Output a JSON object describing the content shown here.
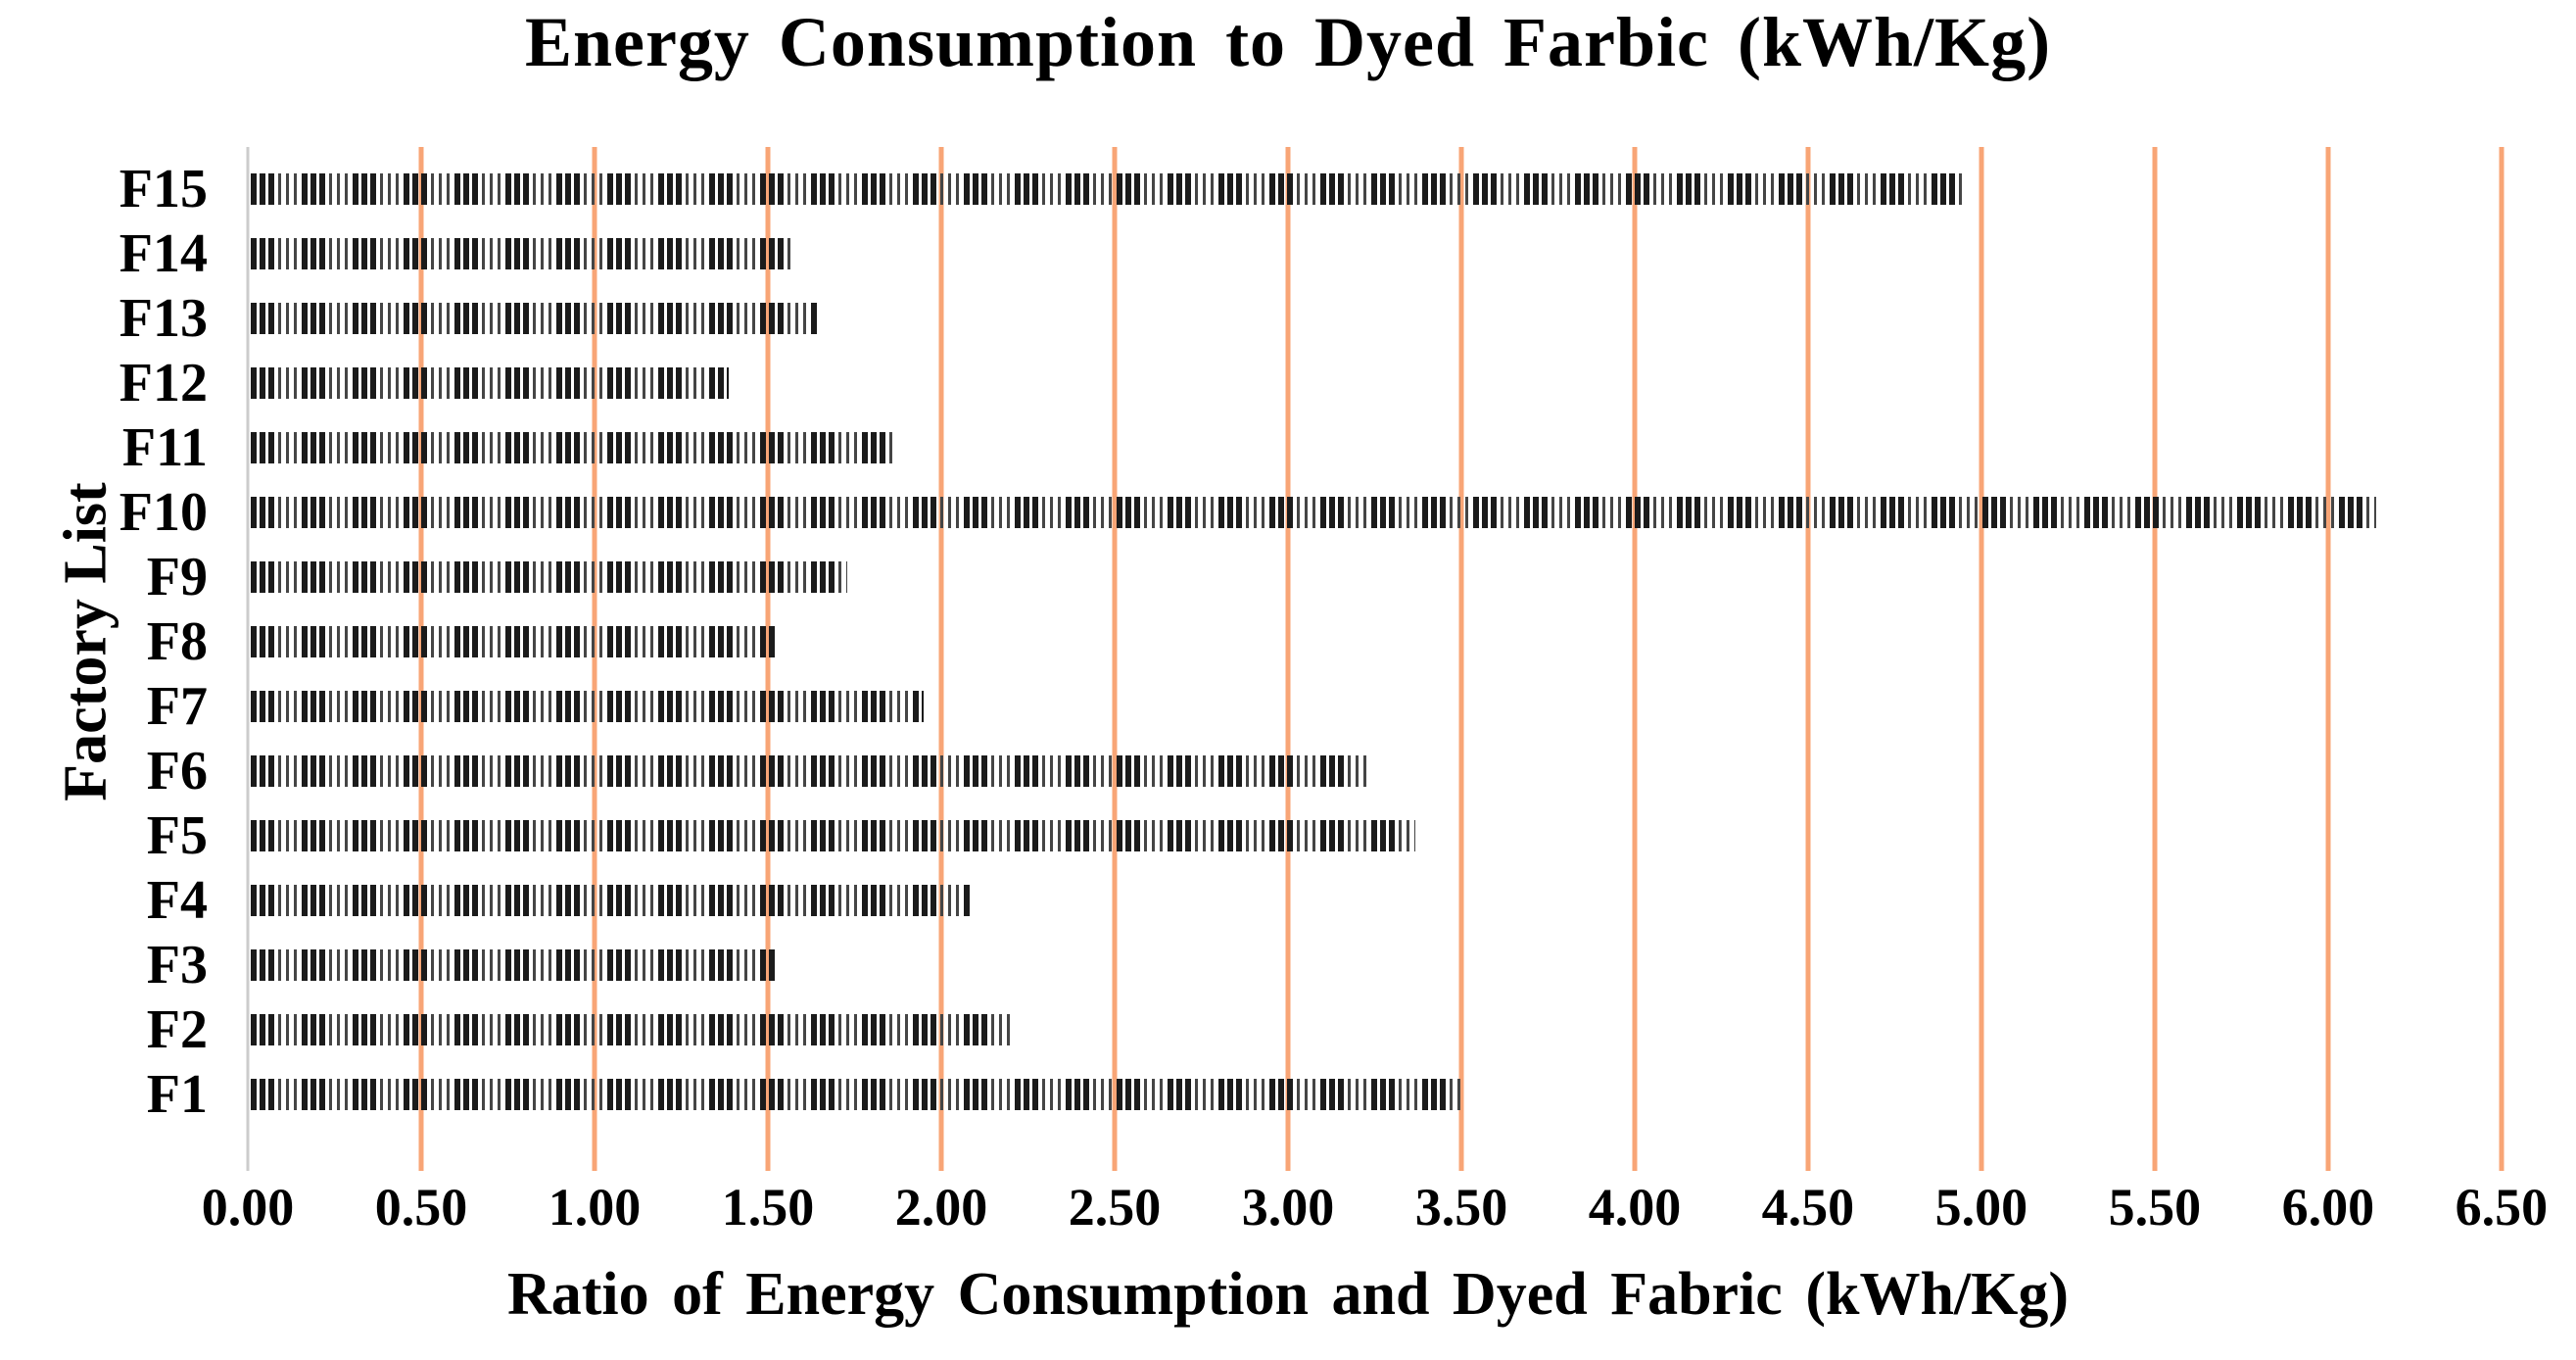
{
  "chart": {
    "title": "Energy Consumption to Dyed Farbic (kWh/Kg)",
    "xlabel": "Ratio of Energy Consumption and Dyed Fabric (kWh/Kg)",
    "ylabel": "Factory List"
  },
  "chart_data": {
    "type": "bar",
    "orientation": "horizontal",
    "title": "Energy Consumption to Dyed Farbic (kWh/Kg)",
    "xlabel": "Ratio of Energy Consumption and Dyed Fabric (kWh/Kg)",
    "ylabel": "Factory List",
    "categories_top_to_bottom": [
      "F15",
      "F14",
      "F13",
      "F12",
      "F11",
      "F10",
      "F9",
      "F8",
      "F7",
      "F6",
      "F5",
      "F4",
      "F3",
      "F2",
      "F1"
    ],
    "values_top_to_bottom": [
      4.94,
      1.56,
      1.64,
      1.38,
      1.85,
      6.13,
      1.72,
      1.51,
      1.94,
      3.23,
      3.36,
      2.08,
      1.51,
      2.19,
      3.49
    ],
    "xlim": [
      0,
      6.5
    ],
    "xtick_step": 0.5,
    "xtick_values": [
      0,
      0.5,
      1.0,
      1.5,
      2.0,
      2.5,
      3.0,
      3.5,
      4.0,
      4.5,
      5.0,
      5.5,
      6.0,
      6.5
    ],
    "xtick_labels": [
      "0.00",
      "0.50",
      "1.00",
      "1.50",
      "2.00",
      "2.50",
      "3.00",
      "3.50",
      "4.00",
      "4.50",
      "5.00",
      "5.50",
      "6.00",
      "6.50"
    ],
    "grid": "vertical-gridlines-on",
    "legend": "none",
    "gridline_color": "#F8A576",
    "zero_axis_color": "#CCCCCC",
    "bar_fill": "black dashed vertical-stripe pattern",
    "bar_color": "#1b1b1b",
    "background_color": "#FFFFFF",
    "scale_max": 6.65
  }
}
